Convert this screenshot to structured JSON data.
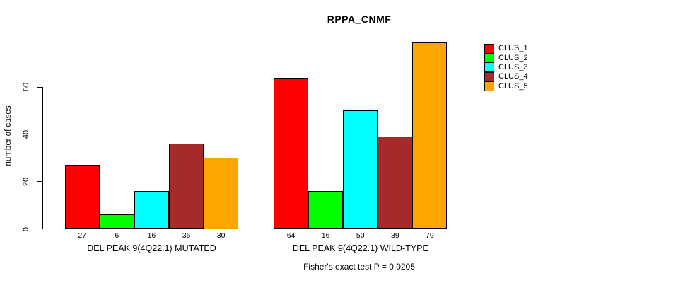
{
  "title": "RPPA_CNMF",
  "y_axis": {
    "label": "number of cases",
    "ticks": [
      0,
      20,
      40,
      60
    ]
  },
  "footer": "Fisher's exact test P = 0.0205",
  "legend": [
    {
      "label": "CLUS_1",
      "color": "#FF0000"
    },
    {
      "label": "CLUS_2",
      "color": "#00FF00"
    },
    {
      "label": "CLUS_3",
      "color": "#00FFFF"
    },
    {
      "label": "CLUS_4",
      "color": "#A52A2A"
    },
    {
      "label": "CLUS_5",
      "color": "#FFA500"
    }
  ],
  "chart_data": {
    "type": "bar",
    "title": "RPPA_CNMF",
    "xlabel": "Fisher's exact test P = 0.0205",
    "ylabel": "number of cases",
    "ylim": [
      0,
      80
    ],
    "yticks": [
      0,
      20,
      40,
      60
    ],
    "grid": false,
    "legend_position": "right",
    "series": [
      "CLUS_1",
      "CLUS_2",
      "CLUS_3",
      "CLUS_4",
      "CLUS_5"
    ],
    "colors": [
      "#FF0000",
      "#00FF00",
      "#00FFFF",
      "#A52A2A",
      "#FFA500"
    ],
    "groups": [
      {
        "label": "DEL PEAK 9(4Q22.1) MUTATED",
        "values": [
          27,
          6,
          16,
          36,
          30
        ]
      },
      {
        "label": "DEL PEAK 9(4Q22.1) WILD-TYPE",
        "values": [
          64,
          16,
          50,
          39,
          79
        ]
      }
    ]
  }
}
